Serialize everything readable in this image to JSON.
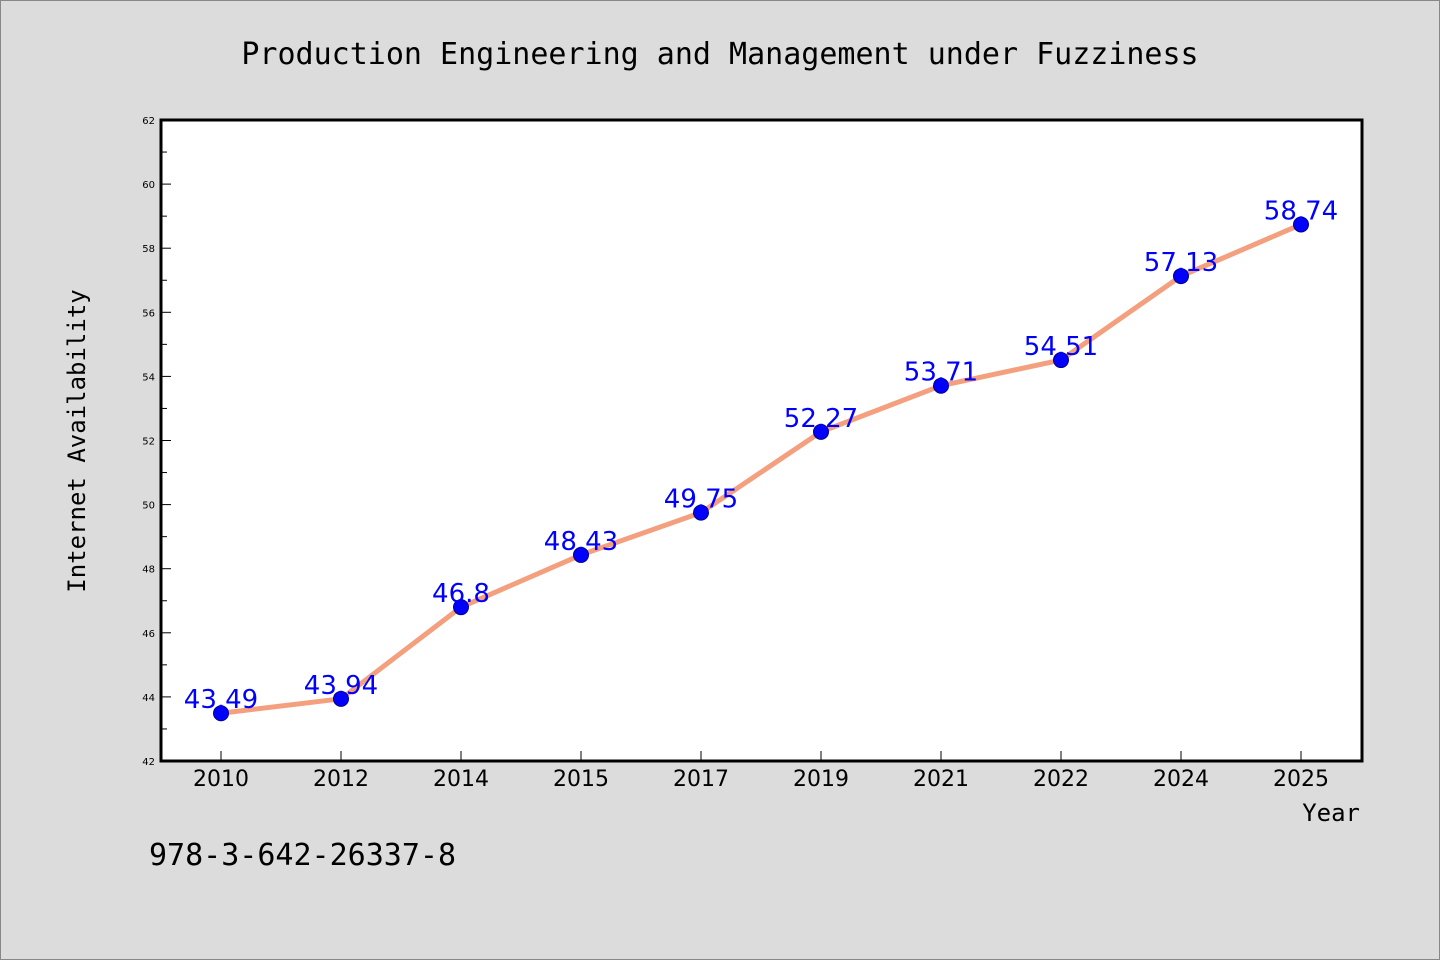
{
  "chart_data": {
    "type": "line",
    "title": "Production Engineering and Management under Fuzziness",
    "xlabel": "Year",
    "ylabel": "Internet Availability",
    "categories": [
      "2010",
      "2012",
      "2014",
      "2015",
      "2017",
      "2019",
      "2021",
      "2022",
      "2024",
      "2025"
    ],
    "series": [
      {
        "values": [
          43.49,
          43.94,
          46.8,
          48.43,
          49.75,
          52.27,
          53.71,
          54.51,
          57.13,
          58.74
        ]
      }
    ],
    "data_labels": [
      "43.49",
      "43.94",
      "46.8",
      "48.43",
      "49.75",
      "52.27",
      "53.71",
      "54.51",
      "57.13",
      "58.74"
    ],
    "ylim": [
      42,
      62
    ],
    "yticks": [
      "42",
      "44",
      "46",
      "48",
      "50",
      "52",
      "54",
      "56",
      "58",
      "60",
      "62"
    ],
    "grid": false,
    "line_color": "#f4a07f",
    "marker_color": "#0000ff",
    "label_color": "#0000ff",
    "background_color": "#dcdcdc",
    "plot_background": "#ffffff"
  },
  "footer": {
    "isbn": "978-3-642-26337-8"
  }
}
